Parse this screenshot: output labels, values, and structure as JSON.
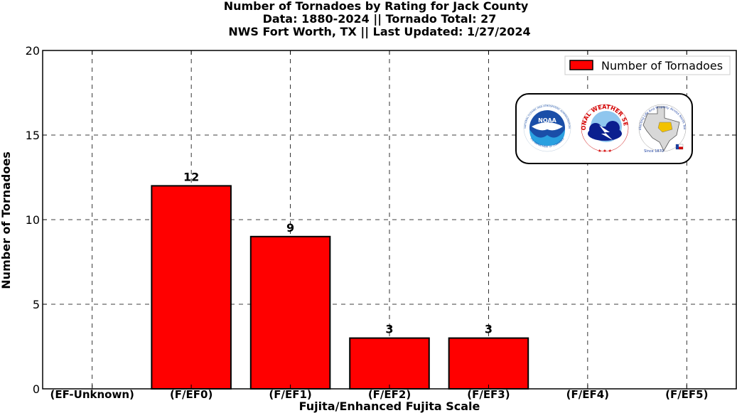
{
  "chart_data": {
    "type": "bar",
    "title_lines": [
      "Number of Tornadoes by Rating for Jack County",
      "Data: 1880-2024 || Tornado Total: 27",
      "NWS Fort Worth, TX || Last Updated: 1/27/2024"
    ],
    "xlabel": "Fujita/Enhanced Fujita Scale",
    "ylabel": "Number of Tornadoes",
    "categories": [
      "(EF-Unknown)",
      "(F/EF0)",
      "(F/EF1)",
      "(F/EF2)",
      "(F/EF3)",
      "(F/EF4)",
      "(F/EF5)"
    ],
    "series": [
      {
        "name": "Number of Tornadoes",
        "values": [
          0,
          12,
          9,
          3,
          3,
          0,
          0
        ],
        "color": "#ff0000"
      }
    ],
    "data_labels": [
      "",
      "12",
      "9",
      "3",
      "3",
      "",
      ""
    ],
    "ylim": [
      0,
      20
    ],
    "yticks": [
      "0",
      "5",
      "10",
      "15",
      "20"
    ],
    "grid": true,
    "legend_position": "top-right",
    "logos": [
      "noaa-logo",
      "national-weather-service-logo",
      "nws-fort-worth-logo"
    ],
    "logo_text": {
      "noaa": "NOAA",
      "noaa_ring": "NATIONAL OCEANIC AND ATMOSPHERIC ADMINISTRATION",
      "noaa_dept": "U.S. DEPARTMENT OF COMMERCE",
      "nws_ring": "NATIONAL WEATHER SERVICE",
      "fw_ring": "Protecting Life And Property Across North Texas",
      "fw_since": "Since 1870"
    }
  }
}
